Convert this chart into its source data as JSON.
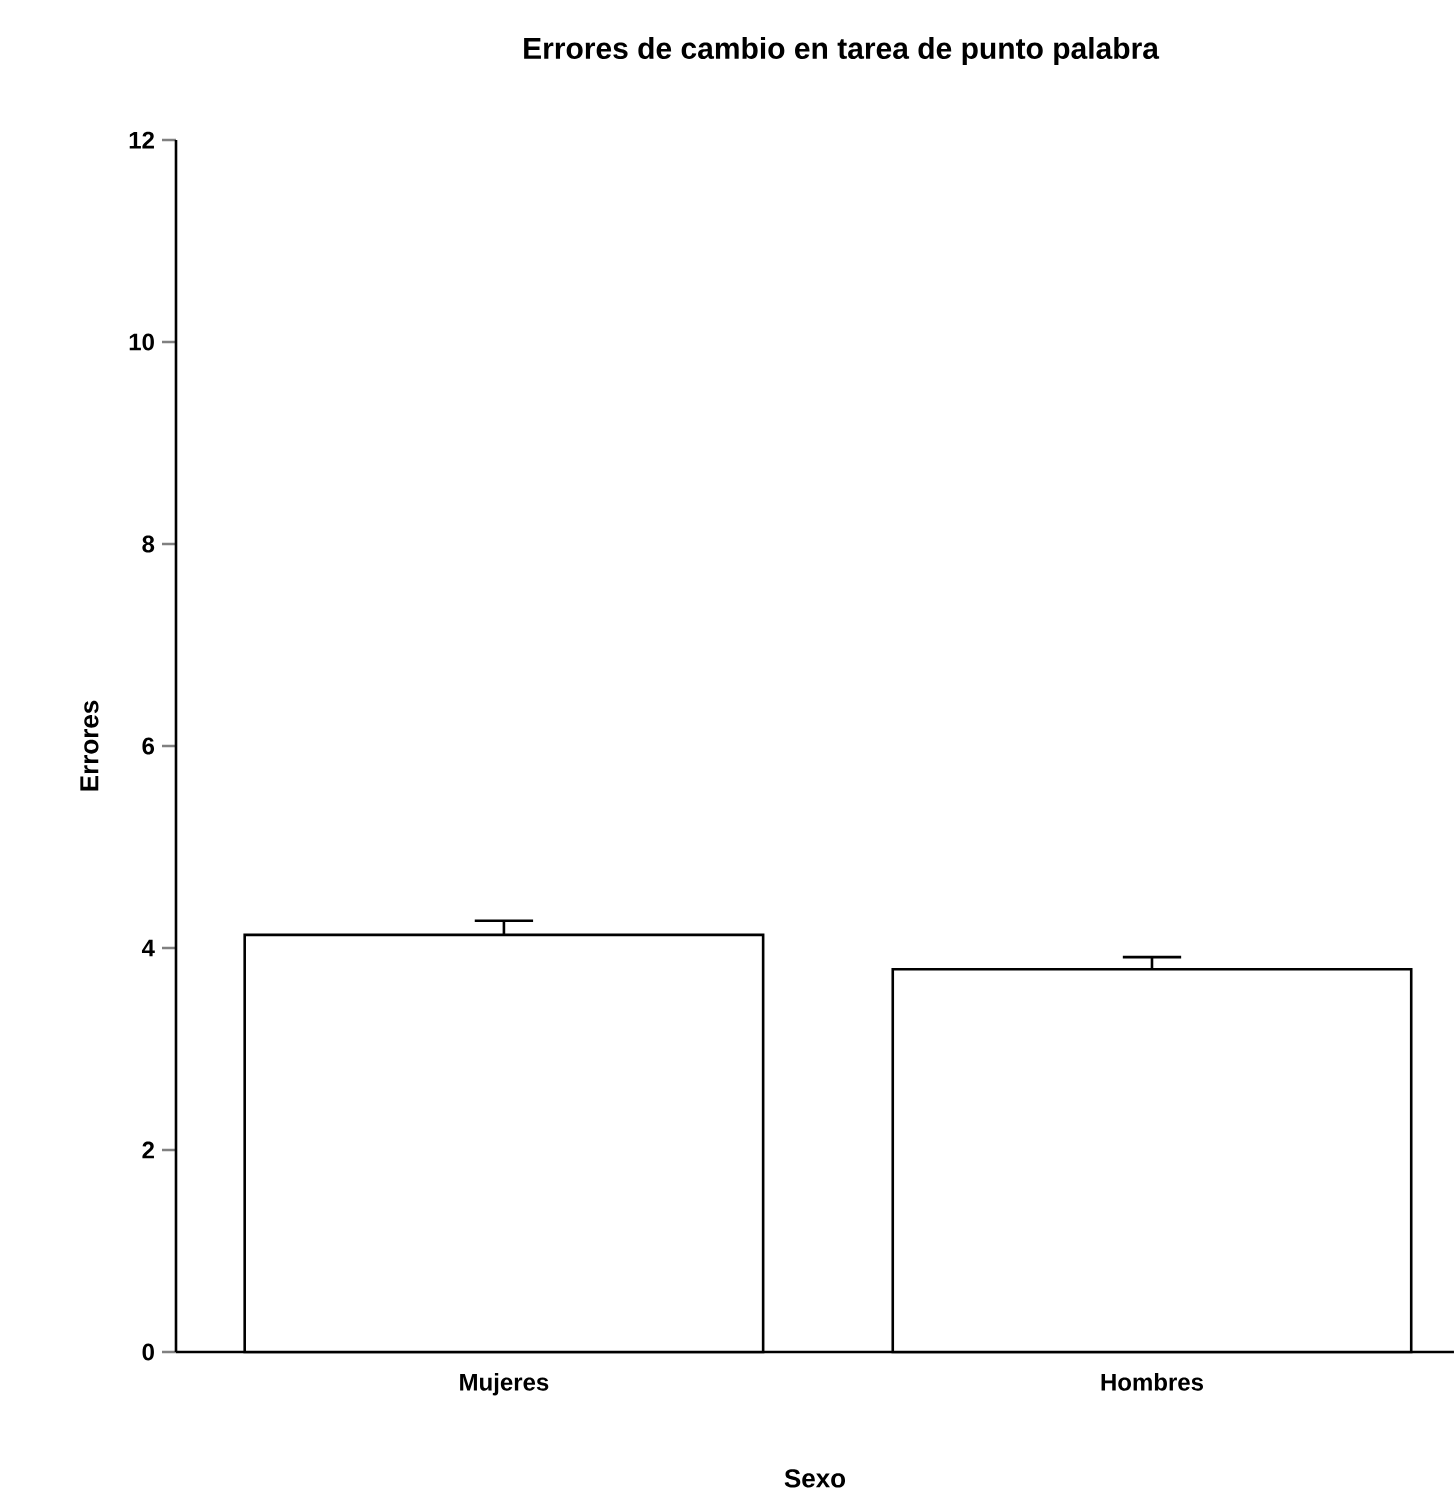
{
  "chart_data": {
    "type": "bar",
    "title": "Errores de cambio en tarea de punto palabra",
    "xlabel": "Sexo",
    "ylabel": "Errores",
    "categories": [
      "Mujeres",
      "Hombres"
    ],
    "values": [
      4.13,
      3.79
    ],
    "errors": [
      [
        4.13,
        4.27
      ],
      [
        3.79,
        3.91
      ]
    ],
    "color": "#ffffff",
    "ylim": [
      0,
      12
    ],
    "yticks": [
      0,
      2,
      4,
      6,
      8,
      10,
      12
    ]
  }
}
